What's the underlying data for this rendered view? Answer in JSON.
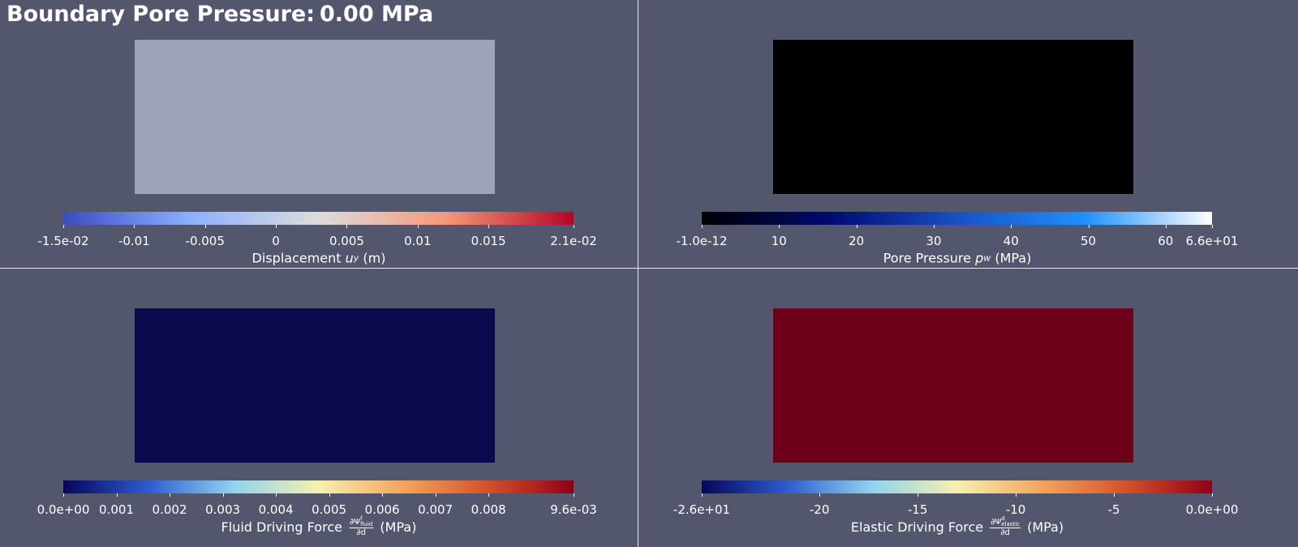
{
  "header": {
    "title": "Boundary Pore Pressure:",
    "value": "0.00 MPa"
  },
  "panels": [
    {
      "mesh_color": "#9fa3b8",
      "colormap": [
        "#3b4cc0",
        "#8db0fe",
        "#dddcdc",
        "#f4987a",
        "#b40426"
      ],
      "ticks": [
        {
          "value": -0.015,
          "label": "-1.5e-02"
        },
        -0.01,
        -0.005,
        0,
        0.005,
        0.01,
        0.015,
        {
          "value": 0.021,
          "label": "2.1e-02"
        }
      ],
      "label": {
        "text": "Displacement ",
        "symbol": "u",
        "sub": "y",
        "unit": " (m)"
      }
    },
    {
      "mesh_color": "#000000",
      "colormap": [
        "#000000",
        "#000a6e",
        "#1a4fc4",
        "#1e90ff",
        "#ffffff"
      ],
      "ticks": [
        {
          "value": -1e-12,
          "label": "-1.0e-12"
        },
        10,
        20,
        30,
        40,
        50,
        60,
        {
          "value": 66,
          "label": "6.6e+01"
        }
      ],
      "label": {
        "text": "Pore Pressure ",
        "symbol": "p",
        "sub": "w",
        "unit": " (MPa)"
      }
    },
    {
      "mesh_color": "#0c0a4f",
      "colormap": [
        "#05065a",
        "#2e5ccf",
        "#8fd3ef",
        "#f6f0b0",
        "#f4a55c",
        "#d3502a",
        "#900016"
      ],
      "ticks": [
        {
          "value": 0,
          "label": "0.0e+00"
        },
        0.001,
        0.002,
        0.003,
        0.004,
        0.005,
        0.006,
        0.007,
        0.008,
        {
          "value": 0.0096,
          "label": "9.6e-03"
        }
      ],
      "label": {
        "text": "Fluid Driving Force ",
        "numerator": "∂Ψ",
        "sup": "f",
        "sub": "fluid",
        "denominator": "∂d",
        "unit": " (MPa)"
      }
    },
    {
      "mesh_color": "#6d0018",
      "colormap": [
        "#05065a",
        "#2e5ccf",
        "#8fd3ef",
        "#f6f0b0",
        "#f4a55c",
        "#d3502a",
        "#900016"
      ],
      "ticks": [
        {
          "value": -26,
          "label": "-2.6e+01"
        },
        -20,
        -15,
        -10,
        -5,
        {
          "value": 0,
          "label": "0.0e+00"
        }
      ],
      "label": {
        "text": "Elastic Driving Force ",
        "numerator": "∂Ψ",
        "sup": "d",
        "sub": "elastic",
        "denominator": "∂d",
        "unit": " (MPa)"
      }
    }
  ]
}
